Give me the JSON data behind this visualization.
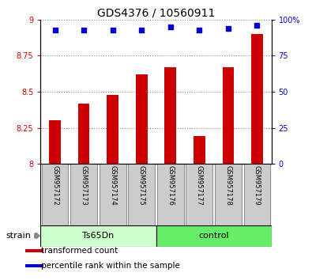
{
  "title": "GDS4376 / 10560911",
  "categories": [
    "GSM957172",
    "GSM957173",
    "GSM957174",
    "GSM957175",
    "GSM957176",
    "GSM957177",
    "GSM957178",
    "GSM957179"
  ],
  "bar_values": [
    8.3,
    8.42,
    8.48,
    8.62,
    8.67,
    8.19,
    8.67,
    8.9
  ],
  "percentile_values": [
    93,
    93,
    93,
    93,
    95,
    93,
    94,
    96
  ],
  "bar_color": "#cc0000",
  "dot_color": "#0000cc",
  "ylim_left": [
    8.0,
    9.0
  ],
  "ylim_right": [
    0,
    100
  ],
  "yticks_left": [
    8.0,
    8.25,
    8.5,
    8.75,
    9.0
  ],
  "ytick_labels_left": [
    "8",
    "8.25",
    "8.5",
    "8.75",
    "9"
  ],
  "yticks_right": [
    0,
    25,
    50,
    75,
    100
  ],
  "ytick_labels_right": [
    "0",
    "25",
    "50",
    "75",
    "100%"
  ],
  "groups": [
    {
      "label": "Ts65Dn",
      "start": 0,
      "end": 4,
      "color": "#ccffcc"
    },
    {
      "label": "control",
      "start": 4,
      "end": 8,
      "color": "#66ee66"
    }
  ],
  "strain_label": "strain",
  "legend_items": [
    {
      "label": "transformed count",
      "color": "#cc0000"
    },
    {
      "label": "percentile rank within the sample",
      "color": "#0000cc"
    }
  ],
  "sample_box_color": "#cccccc",
  "plot_bg": "#ffffff",
  "bar_width": 0.4
}
